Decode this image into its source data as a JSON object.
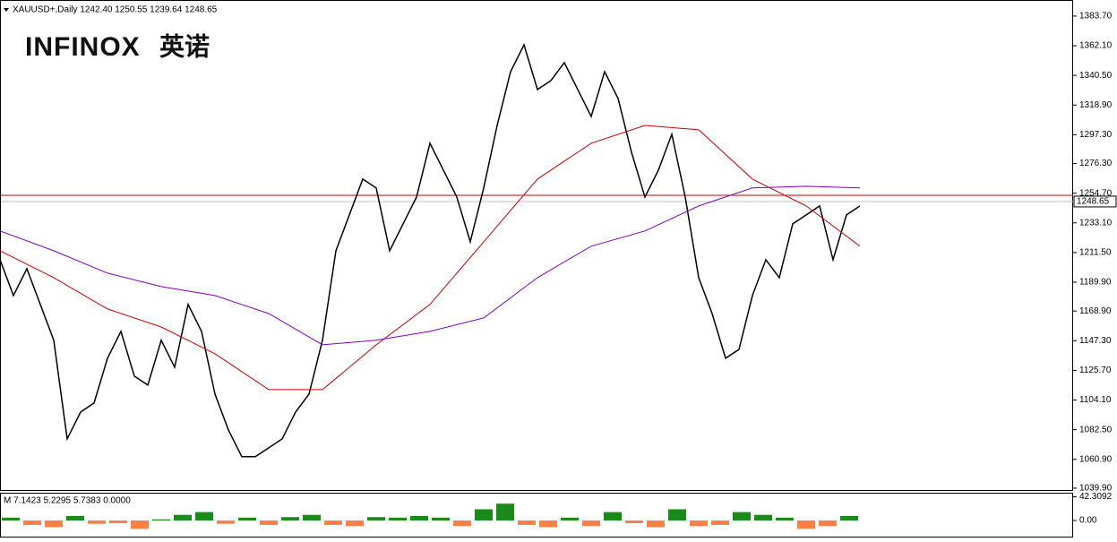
{
  "chart_data": [
    {
      "type": "line",
      "title": "XAUUSD+,Daily 1242.40 1250.55 1239.64 1248.65",
      "logo": "INFINOX",
      "logo_cn": "英诺",
      "ylim": [
        1037.9,
        1395.4
      ],
      "yticks": [
        {
          "value": 1383.7,
          "label": "1383.70"
        },
        {
          "value": 1362.1,
          "label": "1362.10"
        },
        {
          "value": 1340.5,
          "label": "1340.50"
        },
        {
          "value": 1318.9,
          "label": "1318.90"
        },
        {
          "value": 1297.3,
          "label": "1297.30"
        },
        {
          "value": 1276.3,
          "label": "1276.30"
        },
        {
          "value": 1254.7,
          "label": "1254.70"
        },
        {
          "value": 1233.1,
          "label": "1233.10"
        },
        {
          "value": 1211.5,
          "label": "1211.50"
        },
        {
          "value": 1189.9,
          "label": "1189.90"
        },
        {
          "value": 1168.9,
          "label": "1168.90"
        },
        {
          "value": 1147.3,
          "label": "1147.30"
        },
        {
          "value": 1125.7,
          "label": "1125.70"
        },
        {
          "value": 1104.1,
          "label": "1104.10"
        },
        {
          "value": 1082.5,
          "label": "1082.50"
        },
        {
          "value": 1060.9,
          "label": "1060.90"
        },
        {
          "value": 1039.9,
          "label": "1039.90"
        }
      ],
      "levels": [
        {
          "value": 1253.2,
          "color": "#cc0000"
        }
      ],
      "current_price": {
        "value": 1248.65,
        "label": "1248.65",
        "color": "#c0c0c0"
      },
      "series": [
        {
          "color": "#000000",
          "values": [
            1206.3,
            1180.2,
            1199.7,
            1173.7,
            1147.6,
            1075.8,
            1095.4,
            1101.9,
            1134.5,
            1154.1,
            1121.5,
            1115.0,
            1147.6,
            1128.0,
            1173.7,
            1154.1,
            1108.4,
            1082.3,
            1062.8,
            1062.8,
            1069.3,
            1075.8,
            1095.4,
            1108.4,
            1147.6,
            1212.8,
            1238.9,
            1265.0,
            1258.5,
            1212.8,
            1232.4,
            1251.9,
            1291.1,
            1271.5,
            1251.9,
            1219.3,
            1258.5,
            1304.1,
            1343.2,
            1362.8,
            1330.2,
            1336.7,
            1349.8,
            1330.2,
            1310.6,
            1343.2,
            1323.7,
            1284.5,
            1251.9,
            1271.5,
            1297.6,
            1251.9,
            1193.2,
            1167.1,
            1134.5,
            1141.0,
            1180.2,
            1206.3,
            1193.2,
            1232.4,
            1238.9,
            1245.4,
            1206.3,
            1238.9,
            1245.4
          ]
        },
        {
          "color": "#cc0000",
          "values": [
            1212.8,
            1193.2,
            1170.4,
            1157.3,
            1137.8,
            1111.7,
            1111.7,
            1144.3,
            1173.7,
            1219.3,
            1265.0,
            1291.1,
            1304.1,
            1300.9,
            1265.0,
            1245.4,
            1216.1
          ]
        },
        {
          "color": "#8000c0",
          "values": [
            1227.2,
            1212.8,
            1196.5,
            1186.7,
            1180.2,
            1167.1,
            1144.3,
            1147.6,
            1154.1,
            1163.9,
            1193.2,
            1216.1,
            1227.2,
            1245.4,
            1258.5,
            1259.8,
            1258.5
          ]
        }
      ]
    },
    {
      "type": "bar",
      "title": "M 7.1423 5.2295 5.7383 0.0000",
      "ylim": [
        -30.5,
        48
      ],
      "yticks": [
        42.3092,
        {
          "value": 0,
          "label": "0.00"
        }
      ],
      "positive_color": "#1a8a1a",
      "negative_color": "#ff8040",
      "values": [
        5,
        -8,
        -12,
        8,
        -6,
        -5,
        -15,
        2,
        10,
        15,
        -6,
        5,
        -8,
        6,
        10,
        -8,
        -10,
        6,
        5,
        8,
        5,
        -10,
        20,
        30,
        -8,
        -12,
        5,
        -10,
        15,
        -5,
        -12,
        20,
        -10,
        -8,
        15,
        10,
        5,
        -15,
        -10,
        8
      ]
    }
  ]
}
